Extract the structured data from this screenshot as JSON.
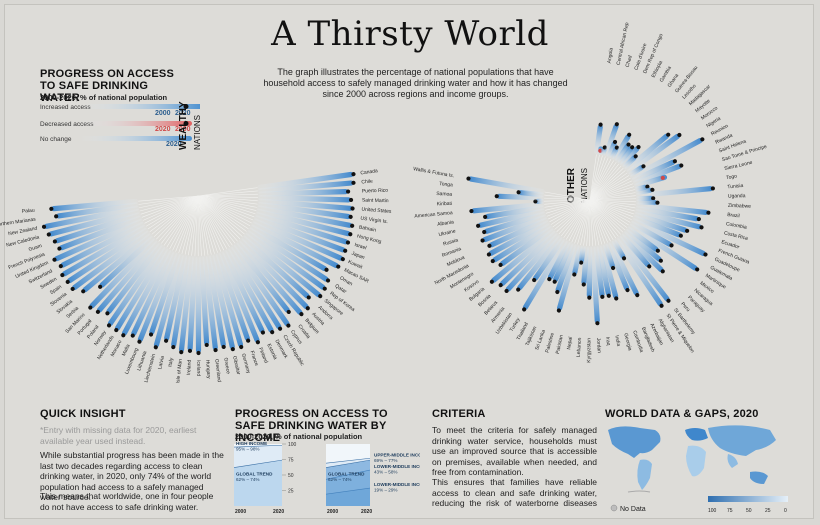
{
  "title": "A Thirsty World",
  "intro": "The graph illustrates the percentage of national populations that have household access to safely managed drinking water and how it has changed since 2000 across regions and income groups.",
  "legend": {
    "title": "PROGRESS ON ACCESS TO SAFE DRINKING WATER",
    "subtitle": "2000-2020, % of national population",
    "increased": "Increased access",
    "decreased": "Decreased access",
    "no_change": "No change",
    "y2000": "2000",
    "y2020": "2020",
    "colors": {
      "increase": "#4a90d0",
      "decrease": "#e05a5a",
      "bar_light": "#eaf3fa"
    }
  },
  "groups": {
    "wealthy": {
      "label": "WEALTHY",
      "sub": "NATIONS"
    },
    "other": {
      "label": "OTHER",
      "sub": "NATIONS"
    }
  },
  "chart_data": [
    {
      "type": "bar",
      "name": "Wealthy nations",
      "categories": [
        "Canada",
        "Chile",
        "Puerto Rico",
        "Saint Martin",
        "United States",
        "US Virgin Is.",
        "Bahrain",
        "Hong Kong",
        "Israel",
        "Japan",
        "Kuwait",
        "Macao SAR",
        "Oman",
        "Qatar",
        "Rep of Korea",
        "Singapore",
        "Andorra",
        "Austria",
        "Belgium",
        "Croatia",
        "Cyprus",
        "Czech Republic",
        "Denmark",
        "Estonia",
        "Finland",
        "France",
        "Germany",
        "Gibraltar",
        "Greece",
        "Greenland",
        "Hungary",
        "Iceland",
        "Ireland",
        "Isle of Man",
        "Italy",
        "Latvia",
        "Liechtenstein",
        "Lithuania",
        "Luxembourg",
        "Malta",
        "Monaco",
        "Netherlands",
        "Norway",
        "Poland",
        "Portugal",
        "San Marino",
        "Serbia",
        "Slovakia",
        "Slovenia",
        "Spain",
        "Sweden",
        "Switzerland",
        "United Kingdom",
        "French Polynesia",
        "Guam",
        "New Caledonia",
        "New Zealand",
        "Northern Marianas",
        "Palau"
      ],
      "values_2000": [
        97,
        96,
        90,
        93,
        96,
        95,
        99,
        99,
        99,
        98,
        99,
        99,
        88,
        96,
        92,
        100,
        91,
        99,
        98,
        80,
        99,
        95,
        97,
        88,
        99,
        94,
        99,
        99,
        91,
        96,
        86,
        98,
        95,
        99,
        93,
        85,
        98,
        80,
        99,
        94,
        100,
        98,
        98,
        84,
        86,
        96,
        64,
        83,
        95,
        97,
        99,
        95,
        99,
        88,
        90,
        94,
        98,
        82,
        85
      ],
      "values_2020": [
        99,
        98,
        92,
        95,
        97,
        96,
        99,
        99,
        99,
        99,
        100,
        99,
        90,
        97,
        99,
        100,
        92,
        99,
        99,
        89,
        100,
        98,
        97,
        93,
        100,
        95,
        99,
        99,
        95,
        97,
        91,
        99,
        97,
        99,
        95,
        90,
        99,
        88,
        99,
        96,
        100,
        99,
        99,
        90,
        95,
        97,
        75,
        91,
        98,
        98,
        99,
        96,
        99,
        90,
        92,
        96,
        99,
        85,
        89
      ]
    },
    {
      "type": "bar",
      "name": "Other nations",
      "categories": [
        "Angola",
        "Central African Rep",
        "Chad",
        "Cote d'Ivoire",
        "Dem Rep of Congo",
        "Ethiopia",
        "Gambia",
        "Ghana",
        "Guinea-Bissau",
        "Lesotho",
        "Madagascar",
        "Mayotte",
        "Morocco",
        "Nigeria",
        "Reunion",
        "Rwanda",
        "Saint Helena",
        "Sao Tome & Principe",
        "Sierra Leone",
        "Togo",
        "Tunisia",
        "Uganda",
        "Zimbabwe",
        "Brazil",
        "Colombia",
        "Costa Rica",
        "Ecuador",
        "French Guiana",
        "Guadeloupe",
        "Guatemala",
        "Martinique",
        "Mexico",
        "Nicaragua",
        "Paraguay",
        "Peru",
        "St Barthelemy",
        "St Pierre & Miquelon",
        "Afghanistan",
        "Azerbaijan",
        "Bangladesh",
        "Cambodia",
        "Georgia",
        "India",
        "Iraq",
        "Jordan",
        "Kyrgyzstan",
        "Lebanon",
        "Nepal",
        "Pakistan",
        "Palestine",
        "Sri Lanka",
        "Tajikistan",
        "Thailand",
        "Turkey",
        "Uzbekistan",
        "Armenia",
        "Belarus",
        "Bosnia",
        "Bulgaria",
        "Kosovo",
        "Montenegro",
        "North Macedonia",
        "Moldova",
        "Romania",
        "Russia",
        "Ukraine",
        "Albania",
        "American Samoa",
        "Kiribati",
        "Samoa",
        "Tonga",
        "Wallis & Futuna Is."
      ],
      "values_2000": [
        20,
        10,
        5,
        25,
        15,
        5,
        25,
        15,
        10,
        20,
        15,
        60,
        40,
        15,
        90,
        40,
        55,
        40,
        5,
        10,
        80,
        5,
        25,
        80,
        65,
        75,
        60,
        55,
        90,
        45,
        95,
        40,
        50,
        50,
        35,
        95,
        90,
        10,
        55,
        50,
        20,
        55,
        50,
        50,
        80,
        50,
        40,
        15,
        30,
        60,
        50,
        45,
        35,
        80,
        55,
        70,
        80,
        80,
        90,
        60,
        80,
        70,
        55,
        70,
        65,
        75,
        55,
        80,
        5,
        45,
        20,
        80
      ],
      "values_2020": [
        35,
        5,
        10,
        40,
        20,
        15,
        35,
        25,
        25,
        30,
        20,
        65,
        75,
        20,
        95,
        55,
        60,
        35,
        15,
        20,
        90,
        20,
        25,
        85,
        75,
        80,
        65,
        60,
        95,
        55,
        95,
        45,
        55,
        65,
        50,
        95,
        95,
        25,
        70,
        60,
        30,
        65,
        60,
        60,
        90,
        60,
        45,
        20,
        35,
        80,
        60,
        50,
        50,
        95,
        60,
        80,
        90,
        90,
        95,
        75,
        80,
        80,
        75,
        80,
        75,
        80,
        70,
        85,
        10,
        55,
        30,
        90
      ]
    },
    {
      "type": "area",
      "name": "Progress by income",
      "title": "PROGRESS ON ACCESS TO SAFE DRINKING WATER BY INCOME",
      "subtitle": "2000-2020, % of national population",
      "x": [
        "2000",
        "2020"
      ],
      "ylim": [
        0,
        100
      ],
      "yticks": [
        25,
        50,
        75,
        100
      ],
      "panels": [
        {
          "series": [
            {
              "name": "HIGH INCOME",
              "label": "95% – 98%",
              "values": [
                95,
                98
              ]
            },
            {
              "name": "GLOBAL TREND",
              "label": "62% – 74%",
              "values": [
                62,
                74
              ]
            }
          ]
        },
        {
          "series": [
            {
              "name": "UPPER-MIDDLE INCOME",
              "label": "69% – 77%",
              "values": [
                69,
                77
              ]
            },
            {
              "name": "LOWER-MIDDLE INCOME",
              "label": "43% – 58%",
              "values": [
                43,
                58
              ]
            },
            {
              "name": "LOWER-MIDDLE INCOME",
              "label": "19% – 29%",
              "values": [
                19,
                29
              ]
            },
            {
              "name": "GLOBAL TREND",
              "label": "62% – 74%",
              "values": [
                62,
                74
              ]
            }
          ]
        }
      ]
    }
  ],
  "quick_insight": {
    "title": "QUICK INSIGHT",
    "note": "*Entry with missing data for 2020, earliest available year used instead.",
    "p1": "While substantial progress has been made in the last two decades regarding access to clean drinking water, in 2020, only 74% of the world population had access to a safely managed water source.",
    "p2": "This means that worldwide, one in four people do not have access to safe drinking water."
  },
  "criteria": {
    "title": "CRITERIA",
    "p1": "To meet the criteria for safely managed drinking water service, households must use an improved source that is accessible on premises, available when needed, and free from contamination.",
    "p2": "This ensures that families have reliable access to clean and safe drinking water, reducing the risk of waterborne diseases and promoting overall health and well-being. Access to safe"
  },
  "world": {
    "title": "WORLD DATA & GAPS, 2020",
    "no_data": "No Data",
    "scale": [
      "100",
      "75",
      "50",
      "25",
      "0"
    ]
  }
}
